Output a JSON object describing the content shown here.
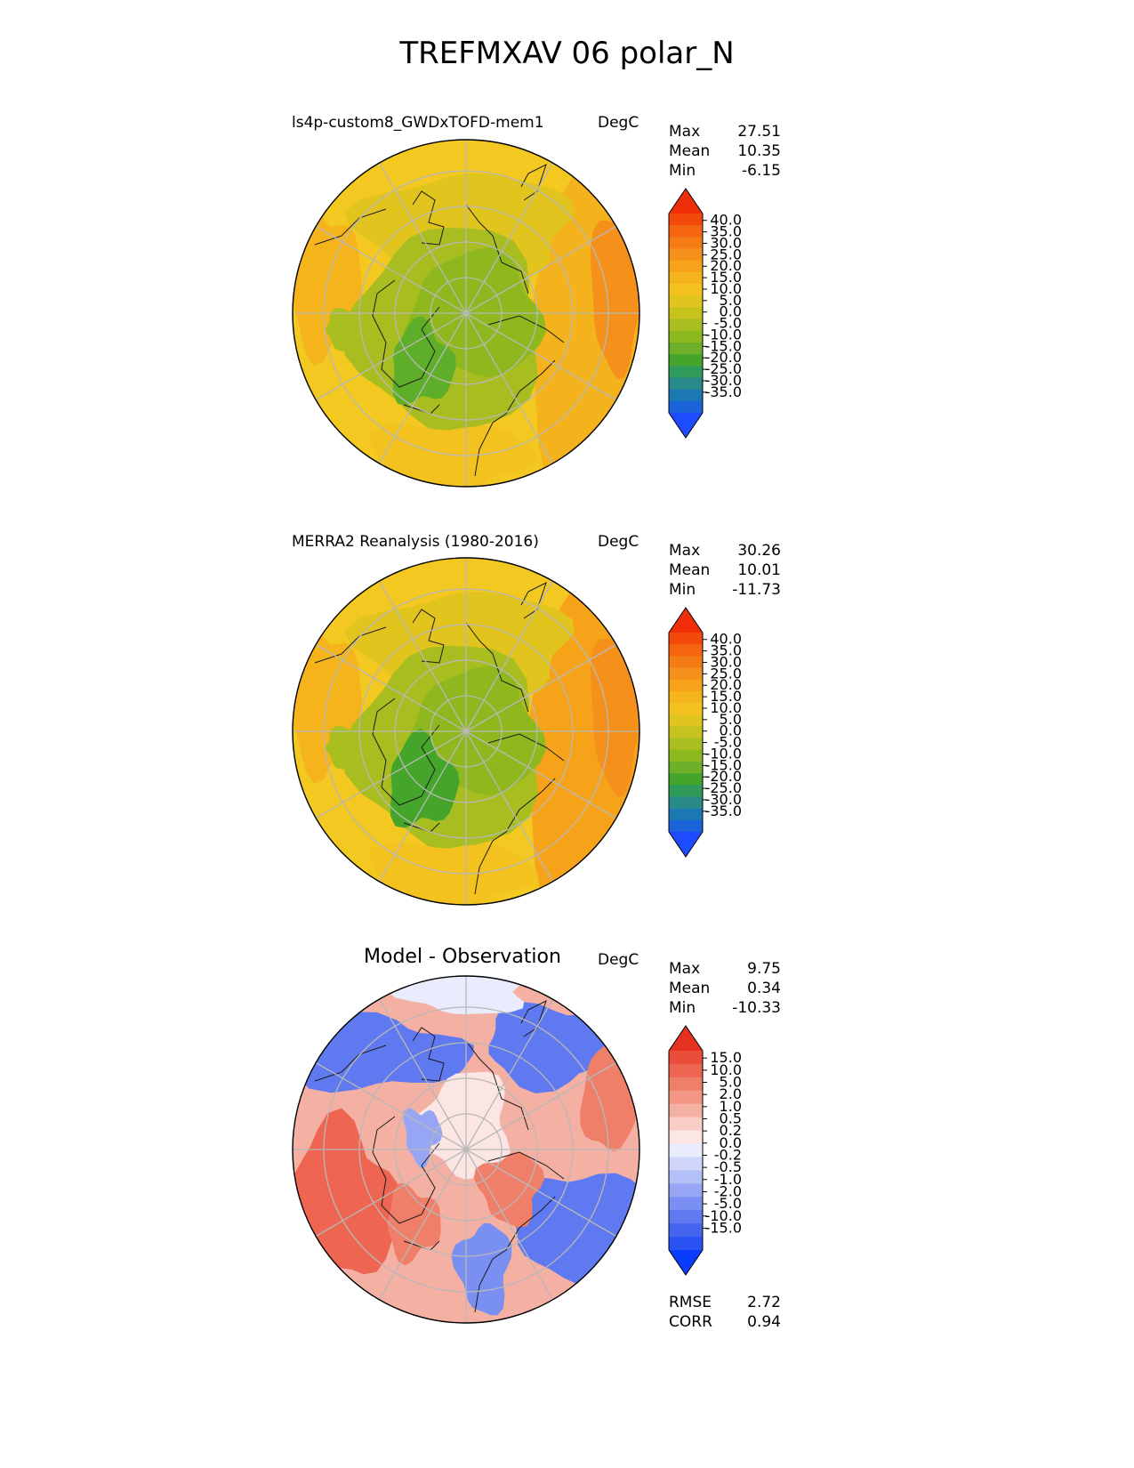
{
  "figure": {
    "title": "TREFMXAV 06 polar_N"
  },
  "colors": {
    "abs_scale": [
      "#1d4cff",
      "#1b63d8",
      "#1b78b3",
      "#2a8a8a",
      "#2f9a5a",
      "#44a52a",
      "#6eb02a",
      "#8db81f",
      "#a9be1f",
      "#c7c31e",
      "#e2c41e",
      "#f3c21f",
      "#f6b41c",
      "#f7a31a",
      "#f5901a",
      "#f57c15",
      "#f5640f",
      "#f34a0b",
      "#ef2e07"
    ],
    "diff_scale": [
      "#0a3cff",
      "#2a52f2",
      "#4466ee",
      "#5f7af0",
      "#7a8ff2",
      "#96a5f4",
      "#b3bff7",
      "#cfd6fa",
      "#e8ecfc",
      "#fbe6e3",
      "#f8cdc6",
      "#f5b0a4",
      "#f39784",
      "#f07f6a",
      "#ee6652",
      "#eb4d3b",
      "#e63020"
    ],
    "ocean_high": "#f4b21c",
    "ocean_mid": "#f3c821",
    "land_cool": "#a8bd1f",
    "land_cold": "#8fb81f",
    "land_coldest": "#5fae2a",
    "coast": "#1b1b1b",
    "grid": "#b8b8b8"
  },
  "panels": [
    {
      "title": "ls4p-custom8_GWDxTOFD-mem1",
      "units": "DegC",
      "stats": [
        {
          "label": "Max",
          "value": "27.51"
        },
        {
          "label": "Mean",
          "value": "10.35"
        },
        {
          "label": "Min",
          "value": "-6.15"
        }
      ],
      "colorbar_ticks": [
        "40.0",
        "35.0",
        "30.0",
        "25.0",
        "20.0",
        "15.0",
        "10.0",
        "5.0",
        "0.0",
        "-5.0",
        "-10.0",
        "-15.0",
        "-20.0",
        "-25.0",
        "-30.0",
        "-35.0"
      ]
    },
    {
      "title": "MERRA2 Reanalysis (1980-2016)",
      "units": "DegC",
      "stats": [
        {
          "label": "Max",
          "value": "30.26"
        },
        {
          "label": "Mean",
          "value": "10.01"
        },
        {
          "label": "Min",
          "value": "-11.73"
        }
      ],
      "colorbar_ticks": [
        "40.0",
        "35.0",
        "30.0",
        "25.0",
        "20.0",
        "15.0",
        "10.0",
        "5.0",
        "0.0",
        "-5.0",
        "-10.0",
        "-15.0",
        "-20.0",
        "-25.0",
        "-30.0",
        "-35.0"
      ]
    },
    {
      "title": "Model - Observation",
      "units": "DegC",
      "stats": [
        {
          "label": "Max",
          "value": "9.75"
        },
        {
          "label": "Mean",
          "value": "0.34"
        },
        {
          "label": "Min",
          "value": "-10.33"
        }
      ],
      "colorbar_ticks": [
        "15.0",
        "10.0",
        "5.0",
        "2.0",
        "1.0",
        "0.5",
        "0.2",
        "0.0",
        "-0.2",
        "-0.5",
        "-1.0",
        "-2.0",
        "-5.0",
        "-10.0",
        "-15.0"
      ],
      "metrics": [
        {
          "label": "RMSE",
          "value": "2.72"
        },
        {
          "label": "CORR",
          "value": "0.94"
        }
      ]
    }
  ],
  "chart_data": [
    {
      "type": "heatmap",
      "title": "ls4p-custom8_GWDxTOFD-mem1",
      "units": "DegC",
      "projection": "north polar stereographic",
      "summary": {
        "max": 27.51,
        "mean": 10.35,
        "min": -6.15
      },
      "colorbar_range": [
        -35.0,
        40.0
      ],
      "grid": true
    },
    {
      "type": "heatmap",
      "title": "MERRA2 Reanalysis (1980-2016)",
      "units": "DegC",
      "projection": "north polar stereographic",
      "summary": {
        "max": 30.26,
        "mean": 10.01,
        "min": -11.73
      },
      "colorbar_range": [
        -35.0,
        40.0
      ],
      "grid": true
    },
    {
      "type": "heatmap",
      "title": "Model - Observation",
      "units": "DegC",
      "projection": "north polar stereographic",
      "summary": {
        "max": 9.75,
        "mean": 0.34,
        "min": -10.33
      },
      "colorbar_range": [
        -15.0,
        15.0
      ],
      "metrics": {
        "rmse": 2.72,
        "corr": 0.94
      },
      "grid": true
    }
  ]
}
